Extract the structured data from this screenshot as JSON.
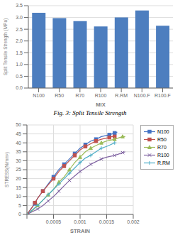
{
  "chart_data": [
    {
      "type": "bar",
      "title": "Fig. 3: Split Tensile Strength",
      "xlabel": "MIX",
      "ylabel": "Split Tensile Strength (MPa)",
      "categories": [
        "N100",
        "R50",
        "R70",
        "R100",
        "R.RM",
        "N100.F",
        "R100.F"
      ],
      "values": [
        3.2,
        2.97,
        2.84,
        2.62,
        3.0,
        3.3,
        2.65
      ],
      "color": "#4D7EBF",
      "ylim": [
        0,
        3.5
      ],
      "yticks": [
        {
          "value": 0,
          "label": "0.0"
        },
        0.5,
        {
          "value": 1.0,
          "label": "1.0"
        },
        1.5,
        {
          "value": 2.0,
          "label": "2.0"
        },
        2.5,
        {
          "value": 3.0,
          "label": "3.0"
        },
        3.5
      ],
      "grid": "y"
    },
    {
      "type": "line",
      "xlabel": "STRAIN",
      "ylabel": "STRESS(N/mm²)",
      "series": [
        {
          "name": "N100",
          "color": "#4472C4",
          "marker": "square",
          "x": [
            0,
            0.0001,
            0.00015,
            0.0002,
            0.0003,
            0.0004,
            0.0005,
            0.0006,
            0.0007,
            0.0008,
            0.0009,
            0.001,
            0.0011,
            0.0012,
            0.0013,
            0.0014,
            0.00155,
            0.0016,
            0.00165,
            0.0017
          ],
          "values": [
            0,
            4,
            6,
            9,
            13,
            17,
            21,
            25,
            28,
            31,
            34,
            37,
            39,
            41,
            42,
            43.5,
            44.5,
            45,
            45.5,
            46
          ]
        },
        {
          "name": "R50",
          "color": "#C0504D",
          "marker": "square",
          "x": [
            0,
            0.0001,
            0.00015,
            0.0002,
            0.0003,
            0.0004,
            0.0005,
            0.0006,
            0.0007,
            0.0008,
            0.0009,
            0.001,
            0.0011,
            0.0012,
            0.0013,
            0.0014,
            0.00155,
            0.0016,
            0.00165
          ],
          "values": [
            0,
            4,
            6.5,
            9,
            13,
            16.5,
            20,
            24,
            27,
            30,
            33,
            36,
            38,
            39.5,
            41,
            42,
            43,
            43.5,
            43.5
          ]
        },
        {
          "name": "R70",
          "color": "#9BBB59",
          "marker": "triangle",
          "x": [
            0,
            0.0001,
            0.0002,
            0.0003,
            0.0004,
            0.0005,
            0.0006,
            0.0007,
            0.0008,
            0.0009,
            0.001,
            0.0011,
            0.0012,
            0.0013,
            0.0014,
            0.0015,
            0.00165,
            0.00175,
            0.0018,
            0.00185
          ],
          "values": [
            0,
            2,
            5,
            8,
            11,
            14,
            18,
            21,
            25,
            29,
            32,
            35,
            37,
            38.5,
            40,
            41,
            42,
            43,
            43.5,
            43.5
          ]
        },
        {
          "name": "R100",
          "color": "#8064A2",
          "marker": "x",
          "x": [
            0,
            0.0001,
            0.0002,
            0.0003,
            0.0004,
            0.0005,
            0.0006,
            0.0007,
            0.0008,
            0.0009,
            0.001,
            0.0011,
            0.0012,
            0.0013,
            0.0014,
            0.0015,
            0.00165,
            0.00175,
            0.0018,
            0.00185
          ],
          "values": [
            0,
            1.5,
            3,
            5,
            7.5,
            10,
            13,
            16,
            19,
            21.5,
            24,
            26,
            28,
            29.5,
            31,
            32,
            33,
            34,
            34.5,
            35
          ]
        },
        {
          "name": "R.RM",
          "color": "#4BACC6",
          "marker": "plus",
          "x": [
            0,
            0.0001,
            0.0002,
            0.0003,
            0.0004,
            0.0005,
            0.0006,
            0.0007,
            0.0008,
            0.0009,
            0.001,
            0.0011,
            0.0012,
            0.0013,
            0.0014,
            0.0015,
            0.00165
          ],
          "values": [
            0,
            2.5,
            5,
            8,
            11,
            14,
            17,
            20,
            23,
            26,
            29,
            31.5,
            33,
            35,
            37,
            38,
            40
          ]
        }
      ],
      "xlim": [
        0,
        0.002
      ],
      "xticks": [
        {
          "value": 0,
          "label": null
        },
        0.0005,
        0.001,
        0.0015,
        0.002
      ],
      "ylim": [
        0,
        50
      ],
      "yticks": [
        0,
        5,
        10,
        15,
        20,
        25,
        30,
        35,
        40,
        45,
        50
      ],
      "grid": true,
      "legend": "right"
    }
  ]
}
